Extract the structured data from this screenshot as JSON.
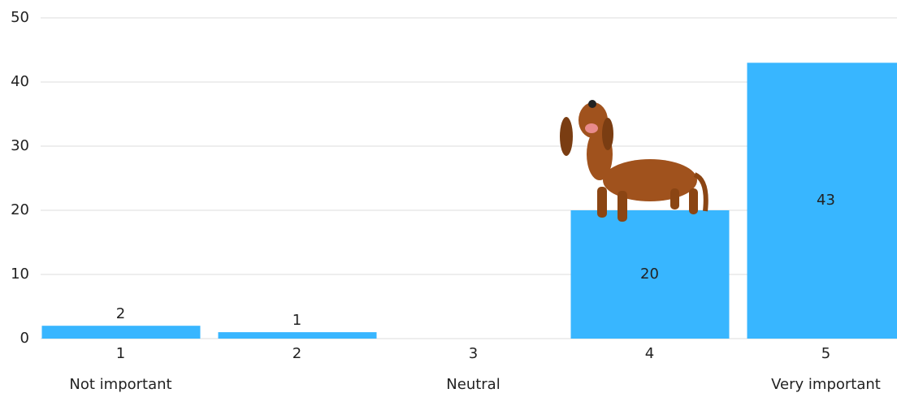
{
  "chart_data": {
    "type": "bar",
    "categories": [
      "1",
      "2",
      "3",
      "4",
      "5"
    ],
    "values": [
      2,
      1,
      0,
      20,
      43
    ],
    "scale_labels": [
      "Not important",
      null,
      "Neutral",
      null,
      "Very important"
    ],
    "color": "#38b6ff",
    "ylim": [
      0,
      50
    ],
    "yticks": [
      0,
      10,
      20,
      30,
      40,
      50
    ],
    "grid": true
  }
}
